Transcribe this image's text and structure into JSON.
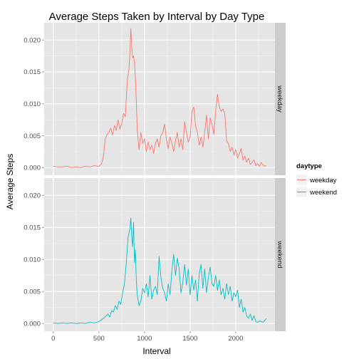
{
  "chart_data": {
    "type": "line",
    "title": "Average Steps Taken by Interval by Day Type",
    "xlabel": "Interval",
    "ylabel": "Average Steps",
    "xlim": [
      -100,
      2430
    ],
    "ylim": [
      -0.0012,
      0.0227
    ],
    "x_ticks": [
      0,
      500,
      1000,
      1500,
      2000
    ],
    "y_ticks": [
      0.0,
      0.005,
      0.01,
      0.015,
      0.02
    ],
    "y_tick_labels": [
      "0.000",
      "0.005",
      "0.010",
      "0.015",
      "0.020"
    ],
    "grid": true,
    "facet_by": "daytype",
    "panels": [
      "weekday",
      "weekend"
    ],
    "legend": {
      "title": "daytype",
      "position": "right",
      "entries": [
        "weekday",
        "weekend"
      ]
    },
    "colors": {
      "weekday": "#F8766D",
      "weekend": "#00BFC4"
    },
    "series": [
      {
        "name": "weekday",
        "panel": "weekday",
        "x": [
          0,
          50,
          100,
          150,
          200,
          250,
          300,
          350,
          400,
          450,
          500,
          530,
          550,
          570,
          590,
          610,
          630,
          650,
          670,
          690,
          710,
          730,
          750,
          770,
          790,
          810,
          830,
          840,
          850,
          860,
          870,
          880,
          890,
          900,
          910,
          920,
          940,
          960,
          980,
          1000,
          1020,
          1040,
          1060,
          1080,
          1100,
          1120,
          1140,
          1160,
          1180,
          1200,
          1220,
          1240,
          1260,
          1280,
          1300,
          1320,
          1340,
          1360,
          1380,
          1400,
          1420,
          1440,
          1460,
          1480,
          1500,
          1520,
          1540,
          1560,
          1580,
          1600,
          1620,
          1640,
          1660,
          1680,
          1700,
          1720,
          1740,
          1760,
          1780,
          1800,
          1820,
          1840,
          1860,
          1880,
          1900,
          1920,
          1940,
          1960,
          1980,
          2000,
          2020,
          2040,
          2060,
          2080,
          2100,
          2120,
          2140,
          2160,
          2180,
          2200,
          2220,
          2240,
          2260,
          2280,
          2300,
          2320,
          2335
        ],
        "y": [
          0.0002,
          0.0001,
          0.0001,
          0.0002,
          0.0,
          0.0001,
          0.0,
          0.0002,
          0.0001,
          0.0003,
          0.0002,
          0.0006,
          0.0018,
          0.0045,
          0.0052,
          0.0055,
          0.0062,
          0.0051,
          0.0066,
          0.0058,
          0.0075,
          0.006,
          0.0069,
          0.0085,
          0.008,
          0.0135,
          0.0155,
          0.018,
          0.0218,
          0.019,
          0.0172,
          0.0175,
          0.0165,
          0.0142,
          0.0105,
          0.006,
          0.0028,
          0.0055,
          0.0038,
          0.0045,
          0.0025,
          0.004,
          0.0028,
          0.0035,
          0.0022,
          0.0038,
          0.0045,
          0.0032,
          0.005,
          0.0055,
          0.0068,
          0.0045,
          0.003,
          0.0048,
          0.0038,
          0.0025,
          0.0042,
          0.0055,
          0.0032,
          0.0045,
          0.0028,
          0.0072,
          0.0055,
          0.004,
          0.0048,
          0.0088,
          0.0095,
          0.0065,
          0.0055,
          0.0035,
          0.0048,
          0.0032,
          0.0055,
          0.0082,
          0.0045,
          0.0078,
          0.0068,
          0.0052,
          0.0088,
          0.0115,
          0.0095,
          0.0088,
          0.0092,
          0.0085,
          0.0042,
          0.0038,
          0.0025,
          0.0032,
          0.002,
          0.0028,
          0.0015,
          0.0022,
          0.003,
          0.0012,
          0.0018,
          0.0008,
          0.0015,
          0.0005,
          0.0008,
          0.0012,
          0.0003,
          0.0006,
          0.0002,
          0.0008,
          0.0004,
          0.0002,
          0.0003
        ]
      },
      {
        "name": "weekend",
        "panel": "weekend",
        "x": [
          0,
          50,
          100,
          150,
          200,
          250,
          300,
          350,
          400,
          450,
          500,
          550,
          580,
          600,
          620,
          640,
          660,
          680,
          700,
          720,
          740,
          760,
          780,
          800,
          820,
          840,
          850,
          860,
          870,
          880,
          890,
          900,
          910,
          920,
          940,
          960,
          980,
          1000,
          1020,
          1040,
          1060,
          1080,
          1100,
          1120,
          1140,
          1160,
          1180,
          1200,
          1220,
          1240,
          1260,
          1280,
          1300,
          1320,
          1340,
          1360,
          1380,
          1400,
          1420,
          1440,
          1460,
          1480,
          1500,
          1520,
          1540,
          1560,
          1580,
          1600,
          1620,
          1640,
          1660,
          1680,
          1700,
          1720,
          1740,
          1760,
          1780,
          1800,
          1820,
          1840,
          1860,
          1880,
          1900,
          1920,
          1940,
          1960,
          1980,
          2000,
          2020,
          2040,
          2060,
          2080,
          2100,
          2120,
          2140,
          2160,
          2180,
          2200,
          2220,
          2240,
          2260,
          2280,
          2300,
          2320,
          2335
        ],
        "y": [
          0.0001,
          0.0,
          0.0001,
          0.0,
          0.0001,
          0.0,
          0.0001,
          0.0,
          0.0002,
          0.0001,
          0.0003,
          0.0008,
          0.0012,
          0.0015,
          0.001,
          0.002,
          0.0018,
          0.0028,
          0.0022,
          0.0035,
          0.003,
          0.0048,
          0.0062,
          0.0095,
          0.0135,
          0.0148,
          0.0165,
          0.0135,
          0.012,
          0.0158,
          0.0095,
          0.0115,
          0.0068,
          0.0045,
          0.0028,
          0.0035,
          0.0055,
          0.0048,
          0.0062,
          0.0042,
          0.0075,
          0.0038,
          0.0052,
          0.0058,
          0.0045,
          0.0105,
          0.0072,
          0.0055,
          0.0048,
          0.0035,
          0.0062,
          0.0045,
          0.0082,
          0.0108,
          0.0075,
          0.0102,
          0.0085,
          0.0048,
          0.0065,
          0.0092,
          0.006,
          0.0085,
          0.0045,
          0.0075,
          0.0052,
          0.0068,
          0.0035,
          0.0078,
          0.0092,
          0.0055,
          0.0085,
          0.0048,
          0.0072,
          0.0088,
          0.0062,
          0.0058,
          0.0075,
          0.0052,
          0.0068,
          0.0045,
          0.0055,
          0.0038,
          0.0062,
          0.0045,
          0.0058,
          0.0035,
          0.0048,
          0.0042,
          0.0052,
          0.0025,
          0.0038,
          0.0018,
          0.0025,
          0.0012,
          0.0008,
          0.0015,
          0.0005,
          0.0012,
          0.0003,
          0.0002,
          0.0004,
          0.0003,
          0.0002,
          0.0005,
          0.0008
        ]
      }
    ]
  }
}
